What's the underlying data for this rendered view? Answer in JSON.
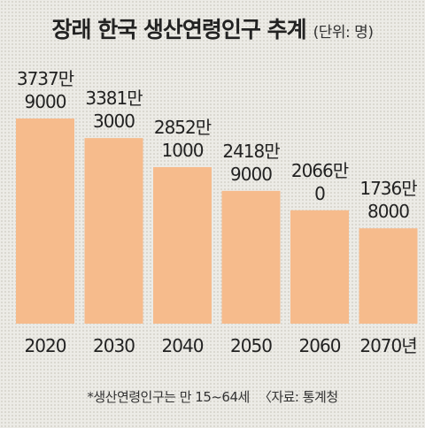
{
  "header": {
    "title": "장래 한국 생산연령인구 추계",
    "unit": "(단위: 명)"
  },
  "footnote": {
    "note": "*생산연령인구는 만 15~64세",
    "source": "〈자료: 통계청"
  },
  "colors": {
    "bar": "#f6bb8c",
    "background": "#ecebe6",
    "text": "#222222"
  },
  "chart_data": {
    "type": "bar",
    "title": "장래 한국 생산연령인구 추계",
    "unit": "(단위: 명)",
    "categories": [
      "2020",
      "2030",
      "2040",
      "2050",
      "2060",
      "2070년"
    ],
    "values": [
      37379000,
      33813000,
      28521000,
      24189000,
      20660000,
      17368000
    ],
    "value_labels": [
      [
        "3737만",
        "9000"
      ],
      [
        "3381만",
        "3000"
      ],
      [
        "2852만",
        "1000"
      ],
      [
        "2418만",
        "9000"
      ],
      [
        "2066만",
        "0"
      ],
      [
        "1736만",
        "8000"
      ]
    ],
    "ylim": [
      0,
      37379000
    ],
    "grid": false,
    "legend": "none"
  }
}
